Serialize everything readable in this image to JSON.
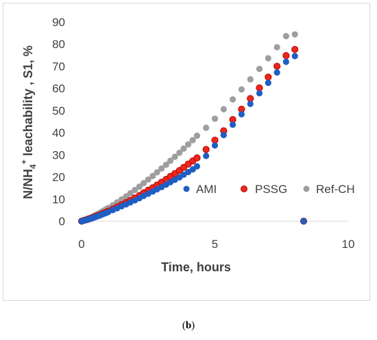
{
  "caption": {
    "open": "(",
    "letter": "b",
    "close": ")"
  },
  "chart_data": {
    "type": "scatter",
    "xlabel": "Time, hours",
    "ylabel_parts": {
      "pre": "N/NH",
      "sub": "4",
      "sup": "+",
      "post": " leachability , S1, %"
    },
    "xlim": [
      0,
      10
    ],
    "ylim": [
      0,
      90
    ],
    "xticks": [
      0,
      5,
      10
    ],
    "yticks": [
      0,
      10,
      20,
      30,
      40,
      50,
      60,
      70,
      80,
      90
    ],
    "legend_position": "inside-lower-right",
    "series": [
      {
        "name": "AMI",
        "color": "#1f5fc4",
        "x": [
          0.0,
          0.08,
          0.17,
          0.25,
          0.33,
          0.42,
          0.5,
          0.58,
          0.67,
          0.75,
          0.83,
          0.92,
          1.0,
          1.17,
          1.33,
          1.5,
          1.67,
          1.83,
          2.0,
          2.17,
          2.33,
          2.5,
          2.67,
          2.83,
          3.0,
          3.17,
          3.33,
          3.5,
          3.67,
          3.83,
          4.0,
          4.17,
          4.33,
          4.67,
          5.0,
          5.33,
          5.67,
          6.0,
          6.33,
          6.67,
          7.0,
          7.33,
          7.67,
          8.0,
          8.33,
          8.67,
          8.83
        ],
        "y": [
          0.0,
          0.2,
          0.5,
          0.8,
          1.1,
          1.4,
          1.8,
          2.1,
          2.5,
          2.9,
          3.3,
          3.7,
          4.1,
          5.0,
          5.8,
          6.7,
          7.6,
          8.5,
          9.4,
          10.4,
          11.4,
          12.4,
          13.4,
          14.4,
          15.4,
          16.5,
          17.6,
          18.7,
          19.8,
          21.0,
          22.2,
          23.4,
          24.8,
          29.5,
          34.2,
          38.9,
          43.6,
          48.3,
          53.0,
          57.8,
          62.5,
          67.2,
          72.0,
          74.6,
          0,
          0,
          0
        ]
      },
      {
        "name": "PSSG",
        "color": "#e8291c",
        "x": [
          0.0,
          0.08,
          0.17,
          0.25,
          0.33,
          0.42,
          0.5,
          0.58,
          0.67,
          0.75,
          0.83,
          0.92,
          1.0,
          1.17,
          1.33,
          1.5,
          1.67,
          1.83,
          2.0,
          2.17,
          2.33,
          2.5,
          2.67,
          2.83,
          3.0,
          3.17,
          3.33,
          3.5,
          3.67,
          3.83,
          4.0,
          4.17,
          4.33,
          4.67,
          5.0,
          5.33,
          5.67,
          6.0,
          6.33,
          6.67,
          7.0,
          7.33,
          7.67,
          8.0,
          8.33,
          8.67,
          8.83
        ],
        "y": [
          0.0,
          0.3,
          0.6,
          0.9,
          1.2,
          1.6,
          2.0,
          2.4,
          2.8,
          3.2,
          3.6,
          4.0,
          4.5,
          5.4,
          6.4,
          7.4,
          8.4,
          9.4,
          10.5,
          11.6,
          12.8,
          14.0,
          15.1,
          16.3,
          17.6,
          18.9,
          20.2,
          21.5,
          22.9,
          24.3,
          25.8,
          27.2,
          28.6,
          32.4,
          36.6,
          40.8,
          45.9,
          50.6,
          55.4,
          60.2,
          65.1,
          70.0,
          74.8,
          77.6,
          0,
          0,
          0
        ]
      },
      {
        "name": "Ref-CH",
        "color": "#9e9e9e",
        "x": [
          0.0,
          0.08,
          0.17,
          0.25,
          0.33,
          0.42,
          0.5,
          0.58,
          0.67,
          0.75,
          0.83,
          0.92,
          1.0,
          1.17,
          1.33,
          1.5,
          1.67,
          1.83,
          2.0,
          2.17,
          2.33,
          2.5,
          2.67,
          2.83,
          3.0,
          3.17,
          3.33,
          3.5,
          3.67,
          3.83,
          4.0,
          4.17,
          4.33,
          4.67,
          5.0,
          5.33,
          5.67,
          6.0,
          6.33,
          6.67,
          7.0,
          7.33,
          7.67,
          8.0,
          8.33,
          8.67,
          8.83
        ],
        "y": [
          0.0,
          0.4,
          0.8,
          1.2,
          1.6,
          2.1,
          2.6,
          3.1,
          3.6,
          4.2,
          4.8,
          5.4,
          6.0,
          7.2,
          8.5,
          9.8,
          11.2,
          12.6,
          14.1,
          15.6,
          17.2,
          18.8,
          20.4,
          22.1,
          23.8,
          25.5,
          27.3,
          29.1,
          30.9,
          32.8,
          34.7,
          36.6,
          38.6,
          42.2,
          46.3,
          50.6,
          55.0,
          59.5,
          64.1,
          68.8,
          73.6,
          78.6,
          83.6,
          84.4,
          0,
          0,
          0
        ]
      }
    ]
  }
}
